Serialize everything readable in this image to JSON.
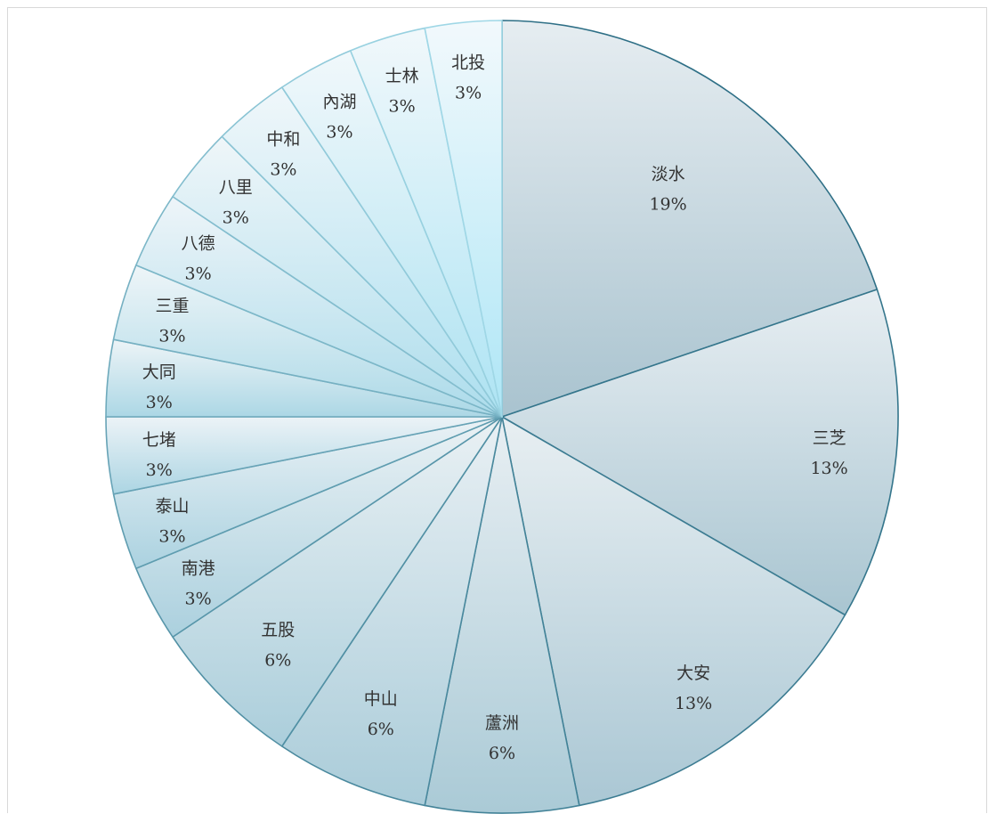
{
  "chart_data": {
    "type": "pie",
    "title": "",
    "slices": [
      {
        "label": "淡水",
        "value": 19,
        "display": "19%"
      },
      {
        "label": "三芝",
        "value": 13,
        "display": "13%"
      },
      {
        "label": "大安",
        "value": 13,
        "display": "13%"
      },
      {
        "label": "蘆洲",
        "value": 6,
        "display": "6%"
      },
      {
        "label": "中山",
        "value": 6,
        "display": "6%"
      },
      {
        "label": "五股",
        "value": 6,
        "display": "6%"
      },
      {
        "label": "南港",
        "value": 3,
        "display": "3%"
      },
      {
        "label": "泰山",
        "value": 3,
        "display": "3%"
      },
      {
        "label": "七堵",
        "value": 3,
        "display": "3%"
      },
      {
        "label": "大同",
        "value": 3,
        "display": "3%"
      },
      {
        "label": "三重",
        "value": 3,
        "display": "3%"
      },
      {
        "label": "八德",
        "value": 3,
        "display": "3%"
      },
      {
        "label": "八里",
        "value": 3,
        "display": "3%"
      },
      {
        "label": "中和",
        "value": 3,
        "display": "3%"
      },
      {
        "label": "內湖",
        "value": 3,
        "display": "3%"
      },
      {
        "label": "士林",
        "value": 3,
        "display": "3%"
      },
      {
        "label": "北投",
        "value": 3,
        "display": "3%"
      }
    ],
    "start_angle": "12 o'clock",
    "direction": "clockwise",
    "legend": "none",
    "colors": {
      "stroke_dark": "#2e6f86",
      "stroke_light": "#9fd7e6",
      "fill_grey_top": "#e6edf1",
      "fill_grey_bottom": "#a9c3cf",
      "fill_blue_top": "#f2f9fc",
      "fill_blue_bottom": "#aee6f6"
    }
  }
}
